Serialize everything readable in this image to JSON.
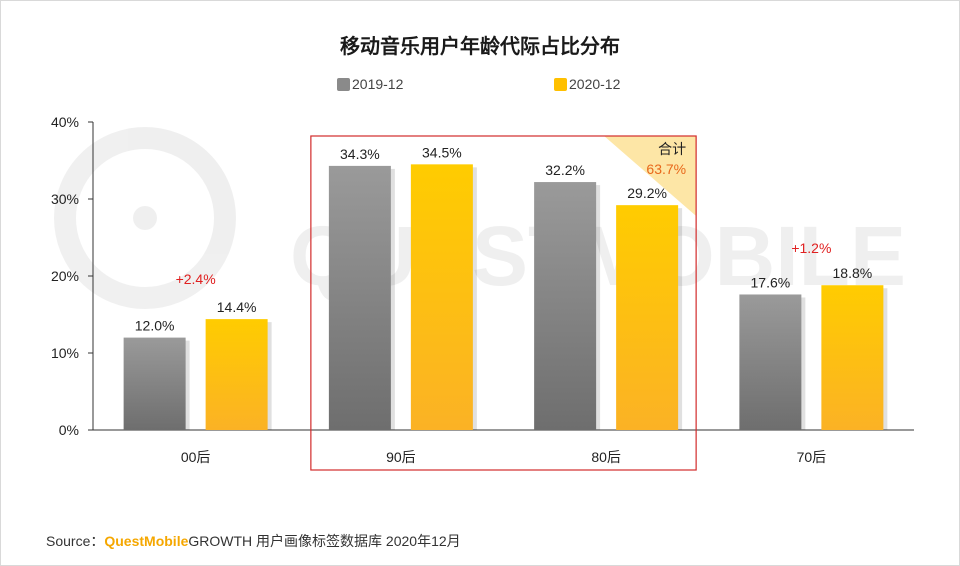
{
  "chart_data": {
    "type": "bar",
    "title": "移动音乐用户年龄代际占比分布",
    "categories": [
      "00后",
      "90后",
      "80后",
      "70后"
    ],
    "series": [
      {
        "name": "2019-12",
        "values": [
          12.0,
          34.3,
          32.2,
          17.6
        ],
        "labels": [
          "12.0%",
          "34.3%",
          "32.2%",
          "17.6%"
        ],
        "color": "#8a8a8a"
      },
      {
        "name": "2020-12",
        "values": [
          14.4,
          34.5,
          29.2,
          18.8
        ],
        "labels": [
          "14.4%",
          "34.5%",
          "29.2%",
          "18.8%"
        ],
        "color": "#ffc000"
      }
    ],
    "yticks": [
      "0%",
      "10%",
      "20%",
      "30%",
      "40%"
    ],
    "ylim": [
      0,
      40
    ],
    "legend_position": "top",
    "annotations": {
      "change_00": "+2.4%",
      "change_70": "+1.2%",
      "combined_label": "合计",
      "combined_value": "63.7%"
    }
  },
  "colors": {
    "gray": "#8a8a8a",
    "gold": "#ffc000",
    "red": "#e02020",
    "highlight_border": "#d22b2b"
  },
  "source": {
    "prefix": "Source：",
    "brand": "QuestMobile",
    "text": "GROWTH 用户画像标签数据库 2020年12月"
  }
}
